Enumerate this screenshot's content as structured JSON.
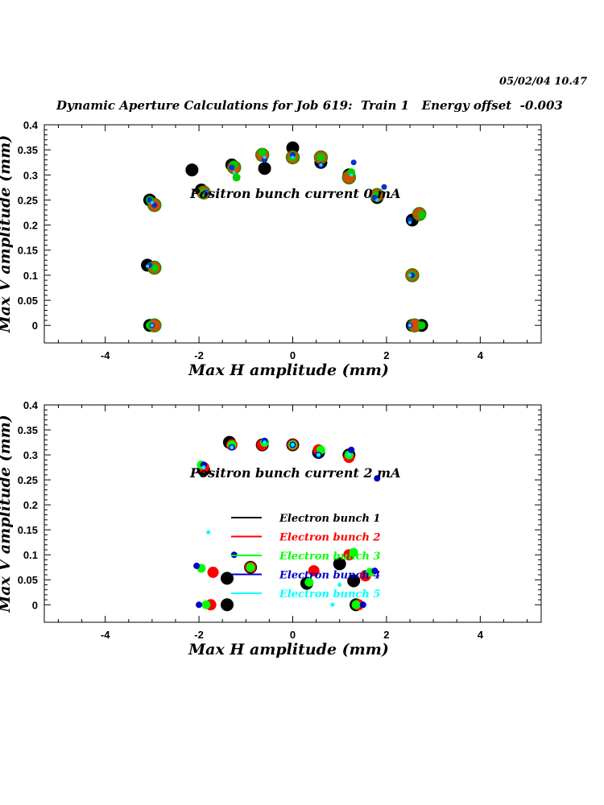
{
  "header": {
    "timestamp": "05/02/04   10.47",
    "title": "Dynamic Aperture Calculations for Job 619:  Train 1   Energy offset  -0.003"
  },
  "chart_data": [
    {
      "type": "scatter",
      "annotation": "Positron bunch current  0 mA",
      "xlabel": "Max H amplitude (mm)",
      "ylabel": "Max V amplitude (mm)",
      "xlim": [
        -5.3,
        5.3
      ],
      "ylim": [
        -0.035,
        0.4
      ],
      "xticks": [
        -4,
        -2,
        0,
        2,
        4
      ],
      "yticks": [
        0,
        0.05,
        0.1,
        0.15,
        0.2,
        0.25,
        0.3,
        0.35,
        0.4
      ],
      "ytick_labels": [
        "0",
        "0.05",
        "0.1",
        "0.15",
        "0.2",
        "0.25",
        "0.3",
        "0.35",
        "0.4"
      ],
      "series": [
        {
          "points": [
            [
              -3.05,
              0
            ],
            [
              -3.1,
              0.12
            ],
            [
              -3.05,
              0.25
            ],
            [
              -2.15,
              0.31
            ],
            [
              -1.95,
              0.27
            ],
            [
              -1.3,
              0.32
            ],
            [
              -0.6,
              0.313
            ],
            [
              0,
              0.354
            ],
            [
              0.6,
              0.325
            ],
            [
              1.2,
              0.3
            ],
            [
              1.8,
              0.255
            ],
            [
              2.55,
              0.21
            ],
            [
              2.55,
              0
            ],
            [
              2.75,
              0
            ]
          ]
        },
        {
          "points": [
            [
              -2.95,
              0
            ],
            [
              -2.95,
              0.115
            ],
            [
              -2.95,
              0.24
            ],
            [
              -1.9,
              0.265
            ],
            [
              -1.25,
              0.315
            ],
            [
              -0.65,
              0.34
            ],
            [
              0,
              0.335
            ],
            [
              0.6,
              0.335
            ],
            [
              1.2,
              0.295
            ],
            [
              1.8,
              0.26
            ],
            [
              2.55,
              0.1
            ],
            [
              2.7,
              0.222
            ],
            [
              2.6,
              0
            ]
          ]
        },
        {
          "points": [
            [
              -3.05,
              0
            ],
            [
              -2.95,
              0.115
            ],
            [
              -3.05,
              0.25
            ],
            [
              -1.9,
              0.265
            ],
            [
              -1.25,
              0.32
            ],
            [
              -1.2,
              0.295
            ],
            [
              -0.65,
              0.345
            ],
            [
              0,
              0.335
            ],
            [
              0.6,
              0.335
            ],
            [
              1.25,
              0.305
            ],
            [
              1.8,
              0.26
            ],
            [
              2.55,
              0.1
            ],
            [
              2.75,
              0.22
            ],
            [
              2.75,
              0
            ]
          ]
        },
        {
          "points": [
            [
              -3.0,
              0
            ],
            [
              -3.05,
              0.12
            ],
            [
              -3.05,
              0.25
            ],
            [
              -2.95,
              0.24
            ],
            [
              -1.85,
              0.265
            ],
            [
              -1.3,
              0.315
            ],
            [
              -0.6,
              0.33
            ],
            [
              0,
              0.34
            ],
            [
              0.6,
              0.32
            ],
            [
              1.3,
              0.325
            ],
            [
              1.95,
              0.276
            ],
            [
              1.75,
              0.255
            ],
            [
              2.5,
              0.21
            ],
            [
              2.55,
              0.1
            ],
            [
              2.5,
              0
            ]
          ]
        },
        {
          "points": [
            [
              -3.0,
              0
            ],
            [
              -3.1,
              0.118
            ],
            [
              -3.0,
              0.245
            ],
            [
              -1.85,
              0.265
            ],
            [
              -1.25,
              0.305
            ],
            [
              -0.6,
              0.335
            ],
            [
              0,
              0.335
            ],
            [
              0.6,
              0.32
            ],
            [
              1.25,
              0.3
            ],
            [
              1.8,
              0.25
            ],
            [
              2.5,
              0.205
            ],
            [
              2.5,
              0.1
            ],
            [
              2.5,
              0
            ]
          ]
        }
      ]
    },
    {
      "type": "scatter",
      "annotation": "Positron bunch current  2 mA",
      "xlabel": "Max H amplitude (mm)",
      "ylabel": "Max V amplitude (mm)",
      "xlim": [
        -5.3,
        5.3
      ],
      "ylim": [
        -0.035,
        0.4
      ],
      "xticks": [
        -4,
        -2,
        0,
        2,
        4
      ],
      "yticks": [
        0,
        0.05,
        0.1,
        0.15,
        0.2,
        0.25,
        0.3,
        0.35,
        0.4
      ],
      "ytick_labels": [
        "0",
        "0.05",
        "0.1",
        "0.15",
        "0.2",
        "0.25",
        "0.3",
        "0.35",
        "0.4"
      ],
      "legend": [
        "Electron bunch 1",
        "Electron bunch 2",
        "Electron bunch 3",
        "Electron bunch 4",
        "Electron bunch 5"
      ],
      "series": [
        {
          "name": "Electron bunch 1",
          "color": "#000000",
          "points": [
            [
              -1.9,
              0.27
            ],
            [
              -1.35,
              0.325
            ],
            [
              -0.65,
              0.32
            ],
            [
              0,
              0.32
            ],
            [
              0.55,
              0.305
            ],
            [
              1.2,
              0.3
            ],
            [
              -1.4,
              0
            ],
            [
              -1.4,
              0.053
            ],
            [
              -0.9,
              0.075
            ],
            [
              0.3,
              0.043
            ],
            [
              1.0,
              0.082
            ],
            [
              1.3,
              0.048
            ],
            [
              1.35,
              0
            ]
          ]
        },
        {
          "name": "Electron bunch 2",
          "color": "#ff0000",
          "points": [
            [
              -1.9,
              0.275
            ],
            [
              -1.3,
              0.32
            ],
            [
              -0.65,
              0.32
            ],
            [
              0,
              0.32
            ],
            [
              0.55,
              0.31
            ],
            [
              1.2,
              0.295
            ],
            [
              -1.75,
              0
            ],
            [
              -1.7,
              0.065
            ],
            [
              -0.9,
              0.075
            ],
            [
              0.45,
              0.068
            ],
            [
              1.2,
              0.1
            ],
            [
              1.4,
              0
            ],
            [
              1.55,
              0.058
            ]
          ]
        },
        {
          "name": "Electron bunch 3",
          "color": "#00ff00",
          "points": [
            [
              -1.95,
              0.28
            ],
            [
              -1.3,
              0.32
            ],
            [
              -0.6,
              0.325
            ],
            [
              0,
              0.32
            ],
            [
              0.6,
              0.31
            ],
            [
              1.2,
              0.3
            ],
            [
              -1.85,
              0
            ],
            [
              -1.95,
              0.073
            ],
            [
              -0.9,
              0.075
            ],
            [
              0.35,
              0.045
            ],
            [
              1.3,
              0.105
            ],
            [
              1.65,
              0.065
            ],
            [
              1.35,
              0
            ]
          ]
        },
        {
          "name": "Electron bunch 4",
          "color": "#0000cc",
          "points": [
            [
              -1.9,
              0.28
            ],
            [
              -1.3,
              0.315
            ],
            [
              -0.6,
              0.328
            ],
            [
              0,
              0.32
            ],
            [
              0.55,
              0.3
            ],
            [
              1.25,
              0.31
            ],
            [
              1.8,
              0.253
            ],
            [
              -2.05,
              0.078
            ],
            [
              -1.25,
              0.1
            ],
            [
              -2.0,
              0
            ],
            [
              1.5,
              0
            ],
            [
              1.75,
              0.068
            ]
          ]
        },
        {
          "name": "Electron bunch 5",
          "color": "#00ffff",
          "points": [
            [
              -1.9,
              0.275
            ],
            [
              -1.3,
              0.315
            ],
            [
              -0.6,
              0.325
            ],
            [
              0,
              0.32
            ],
            [
              0.55,
              0.3
            ],
            [
              1.2,
              0.3
            ],
            [
              -1.8,
              0.145
            ],
            [
              0.85,
              0
            ],
            [
              1.0,
              0.04
            ]
          ]
        }
      ]
    }
  ]
}
